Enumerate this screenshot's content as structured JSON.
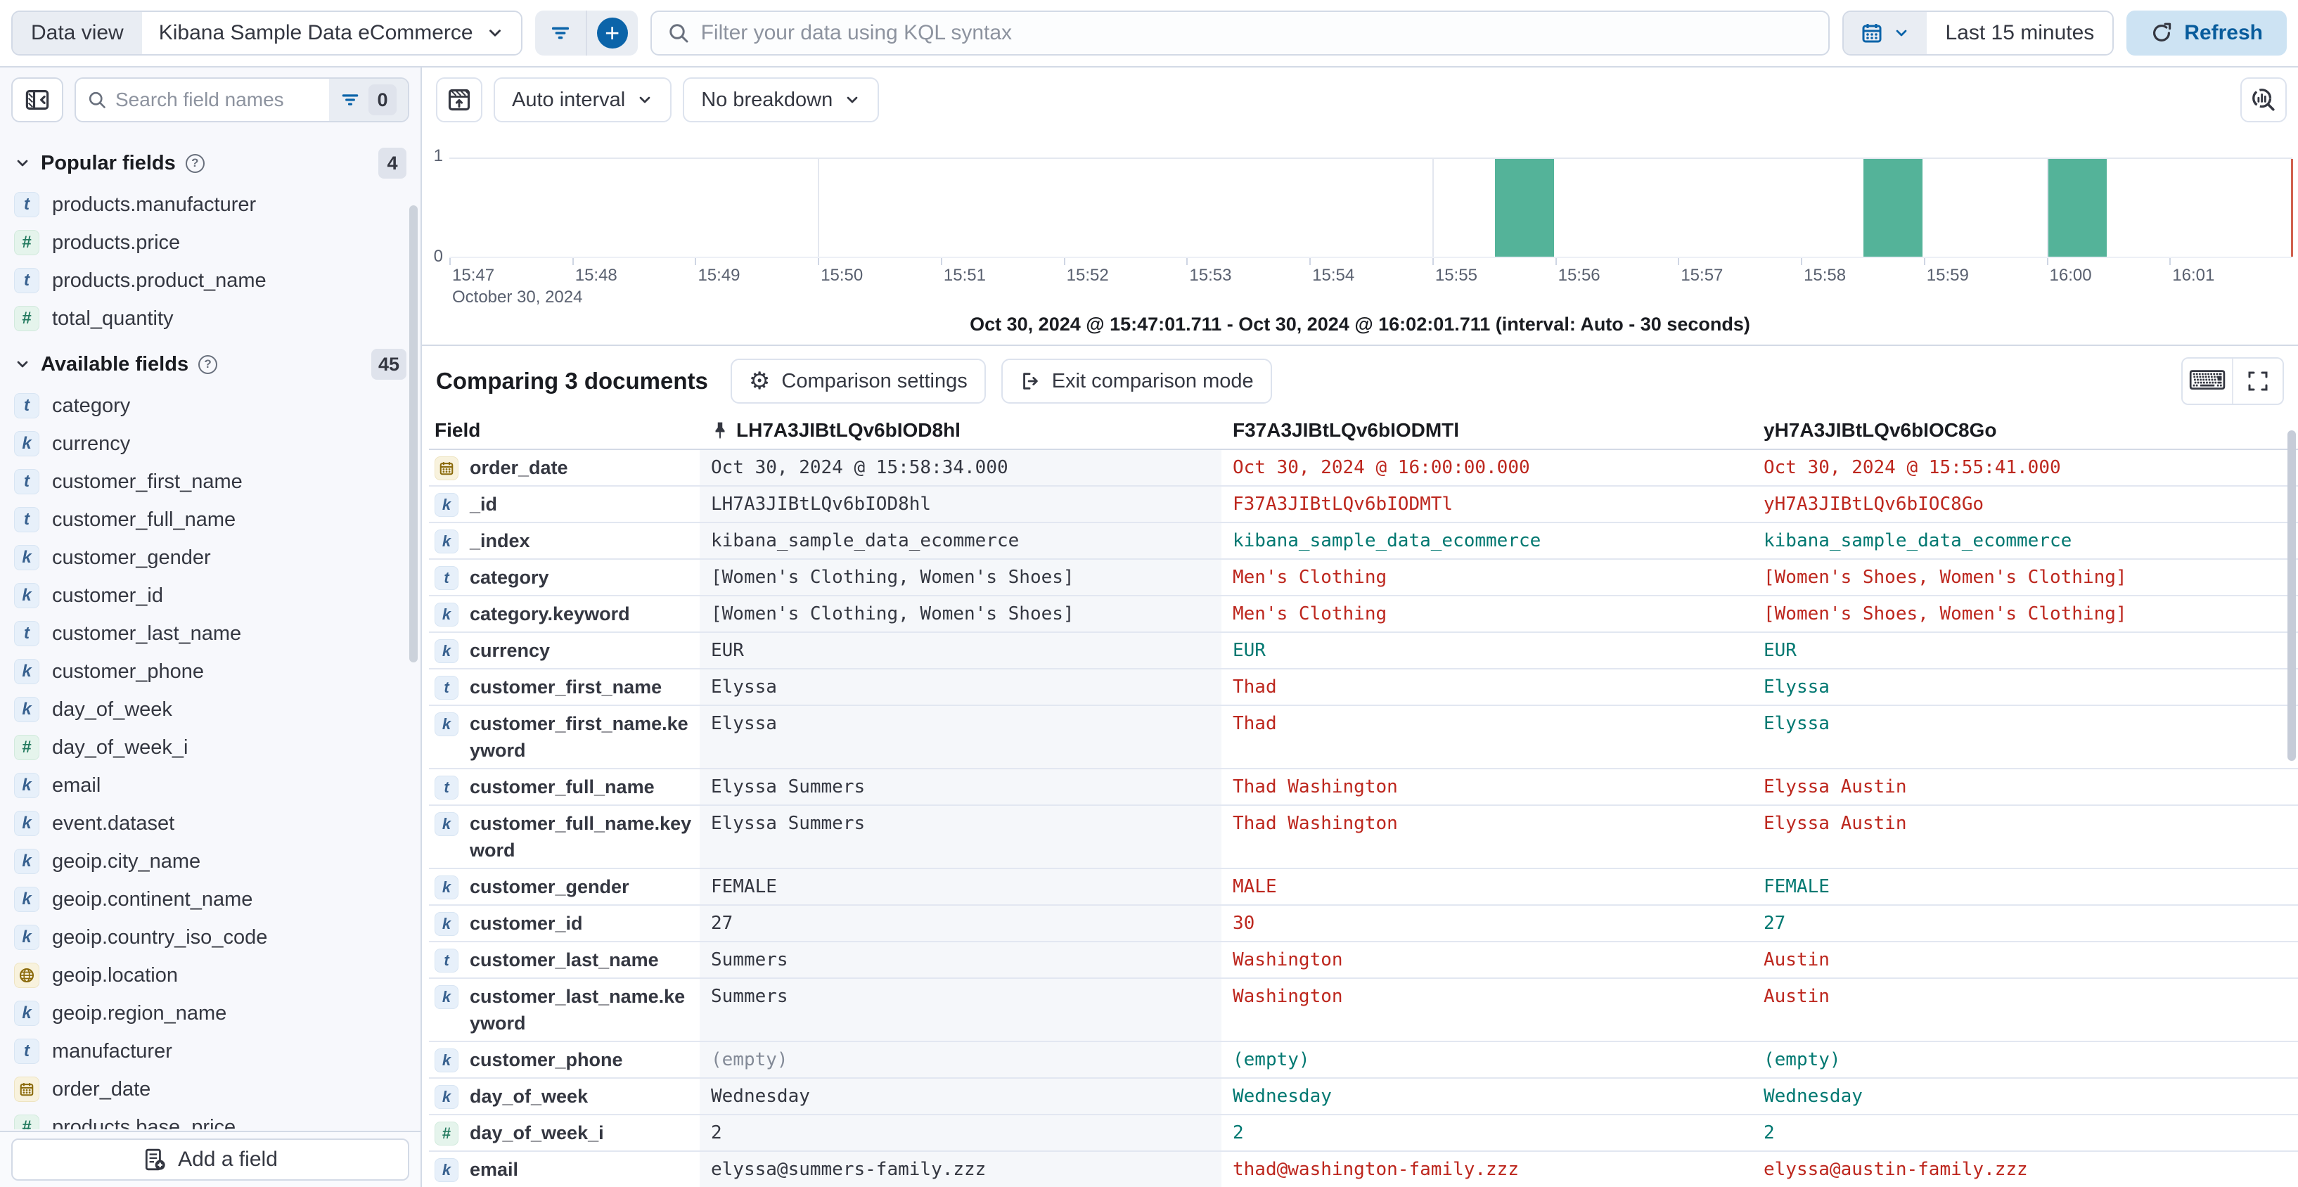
{
  "topbar": {
    "data_view_label": "Data view",
    "data_view_value": "Kibana Sample Data eCommerce",
    "kql_placeholder": "Filter your data using KQL syntax",
    "time_range": "Last 15 minutes",
    "refresh_label": "Refresh"
  },
  "sidebar": {
    "search_placeholder": "Search field names",
    "filter_count": "0",
    "sections": [
      {
        "title": "Popular fields",
        "count": "4",
        "items": [
          {
            "type": "t",
            "label": "products.manufacturer"
          },
          {
            "type": "n",
            "label": "products.price"
          },
          {
            "type": "t",
            "label": "products.product_name"
          },
          {
            "type": "n",
            "label": "total_quantity"
          }
        ]
      },
      {
        "title": "Available fields",
        "count": "45",
        "items": [
          {
            "type": "t",
            "label": "category"
          },
          {
            "type": "k",
            "label": "currency"
          },
          {
            "type": "t",
            "label": "customer_first_name"
          },
          {
            "type": "t",
            "label": "customer_full_name"
          },
          {
            "type": "k",
            "label": "customer_gender"
          },
          {
            "type": "k",
            "label": "customer_id"
          },
          {
            "type": "t",
            "label": "customer_last_name"
          },
          {
            "type": "k",
            "label": "customer_phone"
          },
          {
            "type": "k",
            "label": "day_of_week"
          },
          {
            "type": "n",
            "label": "day_of_week_i"
          },
          {
            "type": "k",
            "label": "email"
          },
          {
            "type": "k",
            "label": "event.dataset"
          },
          {
            "type": "k",
            "label": "geoip.city_name"
          },
          {
            "type": "k",
            "label": "geoip.continent_name"
          },
          {
            "type": "k",
            "label": "geoip.country_iso_code"
          },
          {
            "type": "g",
            "label": "geoip.location"
          },
          {
            "type": "k",
            "label": "geoip.region_name"
          },
          {
            "type": "t",
            "label": "manufacturer"
          },
          {
            "type": "d",
            "label": "order_date"
          },
          {
            "type": "n",
            "label": "products.base_price"
          }
        ]
      }
    ],
    "add_field_label": "Add a field"
  },
  "chart": {
    "interval_button": "Auto interval",
    "breakdown_button": "No breakdown",
    "summary": "Oct 30, 2024 @ 15:47:01.711 - Oct 30, 2024 @ 16:02:01.711 (interval: Auto - 30 seconds)"
  },
  "chart_data": {
    "type": "bar",
    "title": "",
    "x_axis": {
      "start": "15:47:00",
      "end": "16:02:00",
      "tick_labels": [
        "15:47",
        "15:48",
        "15:49",
        "15:50",
        "15:51",
        "15:52",
        "15:53",
        "15:54",
        "15:55",
        "15:56",
        "15:57",
        "15:58",
        "15:59",
        "16:00",
        "16:01"
      ],
      "context_label": "October 30, 2024"
    },
    "y_axis": {
      "ticks": [
        0,
        1
      ],
      "max": 1
    },
    "interval_seconds": 30,
    "bars": [
      {
        "time": "15:55:30",
        "value": 1
      },
      {
        "time": "15:58:30",
        "value": 1
      },
      {
        "time": "16:00:00",
        "value": 1
      }
    ],
    "gridlines_x": [
      "15:50",
      "15:55",
      "16:00"
    ],
    "bar_color": "#54B399",
    "end_marker_color": "#D0614F",
    "grid": true,
    "legend": false
  },
  "compare": {
    "title": "Comparing 3 documents",
    "settings_label": "Comparison settings",
    "exit_label": "Exit comparison mode"
  },
  "table": {
    "field_header": "Field",
    "doc_headers": [
      {
        "id": "LH7A3JIBtLQv6bIOD8hl",
        "pinned": true
      },
      {
        "id": "F37A3JIBtLQv6bIODMTl",
        "pinned": false
      },
      {
        "id": "yH7A3JIBtLQv6bIOC8Go",
        "pinned": false
      }
    ],
    "rows": [
      {
        "type": "d",
        "field": "order_date",
        "values": [
          {
            "v": "Oct 30, 2024 @ 15:58:34.000",
            "s": "base"
          },
          {
            "v": "Oct 30, 2024 @ 16:00:00.000",
            "s": "diff"
          },
          {
            "v": "Oct 30, 2024 @ 15:55:41.000",
            "s": "diff"
          }
        ]
      },
      {
        "type": "k",
        "field": "_id",
        "values": [
          {
            "v": "LH7A3JIBtLQv6bIOD8hl",
            "s": "base"
          },
          {
            "v": "F37A3JIBtLQv6bIODMTl",
            "s": "diff"
          },
          {
            "v": "yH7A3JIBtLQv6bIOC8Go",
            "s": "diff"
          }
        ]
      },
      {
        "type": "k",
        "field": "_index",
        "values": [
          {
            "v": "kibana_sample_data_ecommerce",
            "s": "base"
          },
          {
            "v": "kibana_sample_data_ecommerce",
            "s": "same"
          },
          {
            "v": "kibana_sample_data_ecommerce",
            "s": "same"
          }
        ]
      },
      {
        "type": "t",
        "field": "category",
        "values": [
          {
            "v": "[Women's Clothing, Women's Shoes]",
            "s": "base"
          },
          {
            "v": "Men's Clothing",
            "s": "diff"
          },
          {
            "v": "[Women's Shoes, Women's Clothing]",
            "s": "diff"
          }
        ]
      },
      {
        "type": "k",
        "field": "category.keyword",
        "values": [
          {
            "v": "[Women's Clothing, Women's Shoes]",
            "s": "base"
          },
          {
            "v": "Men's Clothing",
            "s": "diff"
          },
          {
            "v": "[Women's Shoes, Women's Clothing]",
            "s": "diff"
          }
        ]
      },
      {
        "type": "k",
        "field": "currency",
        "values": [
          {
            "v": "EUR",
            "s": "base"
          },
          {
            "v": "EUR",
            "s": "same"
          },
          {
            "v": "EUR",
            "s": "same"
          }
        ]
      },
      {
        "type": "t",
        "field": "customer_first_name",
        "values": [
          {
            "v": "Elyssa",
            "s": "base"
          },
          {
            "v": "Thad",
            "s": "diff"
          },
          {
            "v": "Elyssa",
            "s": "same"
          }
        ]
      },
      {
        "type": "k",
        "field": "customer_first_name.keyword",
        "values": [
          {
            "v": "Elyssa",
            "s": "base"
          },
          {
            "v": "Thad",
            "s": "diff"
          },
          {
            "v": "Elyssa",
            "s": "same"
          }
        ]
      },
      {
        "type": "t",
        "field": "customer_full_name",
        "values": [
          {
            "v": "Elyssa Summers",
            "s": "base"
          },
          {
            "v": "Thad Washington",
            "s": "diff"
          },
          {
            "v": "Elyssa Austin",
            "s": "diff"
          }
        ]
      },
      {
        "type": "k",
        "field": "customer_full_name.keyword",
        "values": [
          {
            "v": "Elyssa Summers",
            "s": "base"
          },
          {
            "v": "Thad Washington",
            "s": "diff"
          },
          {
            "v": "Elyssa Austin",
            "s": "diff"
          }
        ]
      },
      {
        "type": "k",
        "field": "customer_gender",
        "values": [
          {
            "v": "FEMALE",
            "s": "base"
          },
          {
            "v": "MALE",
            "s": "diff"
          },
          {
            "v": "FEMALE",
            "s": "same"
          }
        ]
      },
      {
        "type": "k",
        "field": "customer_id",
        "values": [
          {
            "v": "27",
            "s": "base"
          },
          {
            "v": "30",
            "s": "diff"
          },
          {
            "v": "27",
            "s": "same"
          }
        ]
      },
      {
        "type": "t",
        "field": "customer_last_name",
        "values": [
          {
            "v": "Summers",
            "s": "base"
          },
          {
            "v": "Washington",
            "s": "diff"
          },
          {
            "v": "Austin",
            "s": "diff"
          }
        ]
      },
      {
        "type": "k",
        "field": "customer_last_name.keyword",
        "values": [
          {
            "v": "Summers",
            "s": "base"
          },
          {
            "v": "Washington",
            "s": "diff"
          },
          {
            "v": "Austin",
            "s": "diff"
          }
        ]
      },
      {
        "type": "k",
        "field": "customer_phone",
        "values": [
          {
            "v": "(empty)",
            "s": "muted"
          },
          {
            "v": "(empty)",
            "s": "same"
          },
          {
            "v": "(empty)",
            "s": "same"
          }
        ]
      },
      {
        "type": "k",
        "field": "day_of_week",
        "values": [
          {
            "v": "Wednesday",
            "s": "base"
          },
          {
            "v": "Wednesday",
            "s": "same"
          },
          {
            "v": "Wednesday",
            "s": "same"
          }
        ]
      },
      {
        "type": "n",
        "field": "day_of_week_i",
        "values": [
          {
            "v": "2",
            "s": "base"
          },
          {
            "v": "2",
            "s": "same"
          },
          {
            "v": "2",
            "s": "same"
          }
        ]
      },
      {
        "type": "k",
        "field": "email",
        "values": [
          {
            "v": "elyssa@summers-family.zzz",
            "s": "base"
          },
          {
            "v": "thad@washington-family.zzz",
            "s": "diff"
          },
          {
            "v": "elyssa@austin-family.zzz",
            "s": "diff"
          }
        ]
      }
    ]
  },
  "colors": {
    "accent_blue": "#0B64A9",
    "diff_red": "#BD271E",
    "match_teal": "#007871",
    "bar_green": "#54B399",
    "border": "#D3DAE6",
    "sidebar_bg": "#F7F8FC"
  }
}
